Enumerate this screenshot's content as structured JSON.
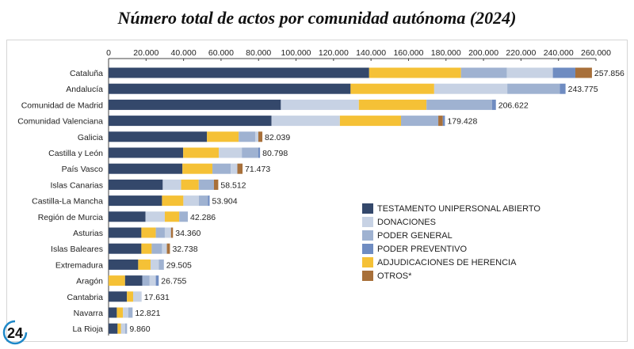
{
  "chart_data": {
    "type": "bar",
    "orientation": "horizontal",
    "stacked": true,
    "title": "Número total de actos por comunidad autónoma (2024)",
    "xlim": [
      0,
      260000
    ],
    "xticks": [
      "0",
      "20.000",
      "40.000",
      "60.000",
      "80.000",
      "100.000",
      "120.000",
      "140.000",
      "160.000",
      "180.000",
      "200.000",
      "220.000",
      "240.000",
      "260.000"
    ],
    "grid": false,
    "legend_position": "bottom-right",
    "series_names": {
      "TUA": "TESTAMENTO UNIPERSONAL ABIERTO",
      "DON": "DONACIONES",
      "PG": "PODER GENERAL",
      "PP": "PODER PREVENTIVO",
      "ADJ": "ADJUDICACIONES DE HERENCIA",
      "OTR": "OTROS*"
    },
    "legend_order": [
      "TUA",
      "DON",
      "PG",
      "PP",
      "ADJ",
      "OTR"
    ],
    "colors": {
      "TUA": "#34486b",
      "DON": "#c7d2e4",
      "PG": "#9fb2d1",
      "PP": "#6f8cc1",
      "ADJ": "#f5c136",
      "OTR": "#a8703a"
    },
    "bars": [
      {
        "category": "Cataluña",
        "total_label": "257.856",
        "segments": [
          [
            "TUA",
            139000
          ],
          [
            "ADJ",
            49000
          ],
          [
            "PG",
            24500
          ],
          [
            "DON",
            24500
          ],
          [
            "PP",
            12000
          ],
          [
            "OTR",
            8856
          ]
        ]
      },
      {
        "category": "Andalucía",
        "total_label": "243.775",
        "segments": [
          [
            "TUA",
            129100
          ],
          [
            "ADJ",
            44600
          ],
          [
            "DON",
            39000
          ],
          [
            "PG",
            28000
          ],
          [
            "PP",
            3075
          ]
        ]
      },
      {
        "category": "Comunidad de Madrid",
        "total_label": "206.622",
        "segments": [
          [
            "TUA",
            91900
          ],
          [
            "DON",
            41600
          ],
          [
            "ADJ",
            36100
          ],
          [
            "PG",
            35000
          ],
          [
            "PP",
            2022
          ]
        ]
      },
      {
        "category": "Comunidad Valenciana",
        "total_label": "179.428",
        "segments": [
          [
            "TUA",
            86900
          ],
          [
            "DON",
            36500
          ],
          [
            "ADJ",
            32600
          ],
          [
            "PG",
            19900
          ],
          [
            "OTR",
            2400
          ],
          [
            "PP",
            1128
          ]
        ]
      },
      {
        "category": "Galicia",
        "total_label": "82.039",
        "segments": [
          [
            "TUA",
            52500
          ],
          [
            "ADJ",
            16900
          ],
          [
            "PG",
            8800
          ],
          [
            "DON",
            1700
          ],
          [
            "OTR",
            2139
          ]
        ]
      },
      {
        "category": "Castilla y León",
        "total_label": "80.798",
        "segments": [
          [
            "TUA",
            39800
          ],
          [
            "ADJ",
            19000
          ],
          [
            "DON",
            12300
          ],
          [
            "PG",
            8800
          ],
          [
            "PP",
            898
          ]
        ]
      },
      {
        "category": "País Vasco",
        "total_label": "71.473",
        "segments": [
          [
            "TUA",
            39400
          ],
          [
            "ADJ",
            16000
          ],
          [
            "PG",
            9800
          ],
          [
            "DON",
            3500
          ],
          [
            "OTR",
            2773
          ]
        ]
      },
      {
        "category": "Islas Canarias",
        "total_label": "58.512",
        "segments": [
          [
            "TUA",
            28900
          ],
          [
            "DON",
            9800
          ],
          [
            "ADJ",
            9400
          ],
          [
            "PG",
            8100
          ],
          [
            "OTR",
            2312
          ]
        ]
      },
      {
        "category": "Castilla-La Mancha",
        "total_label": "53.904",
        "segments": [
          [
            "TUA",
            28500
          ],
          [
            "ADJ",
            11400
          ],
          [
            "DON",
            8300
          ],
          [
            "PG",
            4800
          ],
          [
            "PP",
            904
          ]
        ]
      },
      {
        "category": "Región de Murcia",
        "total_label": "42.286",
        "segments": [
          [
            "TUA",
            19700
          ],
          [
            "DON",
            10300
          ],
          [
            "ADJ",
            7700
          ],
          [
            "PG",
            4586
          ]
        ]
      },
      {
        "category": "Asturias",
        "total_label": "34.360",
        "segments": [
          [
            "TUA",
            17500
          ],
          [
            "ADJ",
            7700
          ],
          [
            "PG",
            4800
          ],
          [
            "DON",
            3300
          ],
          [
            "OTR",
            1060
          ]
        ]
      },
      {
        "category": "Islas Baleares",
        "total_label": "32.738",
        "segments": [
          [
            "TUA",
            17500
          ],
          [
            "ADJ",
            5500
          ],
          [
            "PG",
            5500
          ],
          [
            "DON",
            2600
          ],
          [
            "OTR",
            1638
          ]
        ]
      },
      {
        "category": "Extremadura",
        "total_label": "29.505",
        "segments": [
          [
            "TUA",
            15800
          ],
          [
            "ADJ",
            6600
          ],
          [
            "DON",
            4400
          ],
          [
            "PG",
            2705
          ]
        ]
      },
      {
        "category": "Aragón",
        "total_label": "26.755",
        "segments": [
          [
            "ADJ",
            8800
          ],
          [
            "TUA",
            9200
          ],
          [
            "PG",
            3900
          ],
          [
            "DON",
            3300
          ],
          [
            "PP",
            1555
          ]
        ]
      },
      {
        "category": "Cantabria",
        "total_label": "17.631",
        "segments": [
          [
            "TUA",
            9800
          ],
          [
            "ADJ",
            3300
          ],
          [
            "DON",
            4531
          ]
        ]
      },
      {
        "category": "Navarra",
        "total_label": "12.821",
        "segments": [
          [
            "TUA",
            4400
          ],
          [
            "ADJ",
            3300
          ],
          [
            "DON",
            2800
          ],
          [
            "PG",
            2321
          ]
        ]
      },
      {
        "category": "La Rioja",
        "total_label": "9.860",
        "segments": [
          [
            "TUA",
            4800
          ],
          [
            "ADJ",
            1800
          ],
          [
            "DON",
            2200
          ],
          [
            "PG",
            1060
          ]
        ]
      }
    ]
  },
  "logo": {
    "text": "24",
    "color": "#1e88c8"
  }
}
